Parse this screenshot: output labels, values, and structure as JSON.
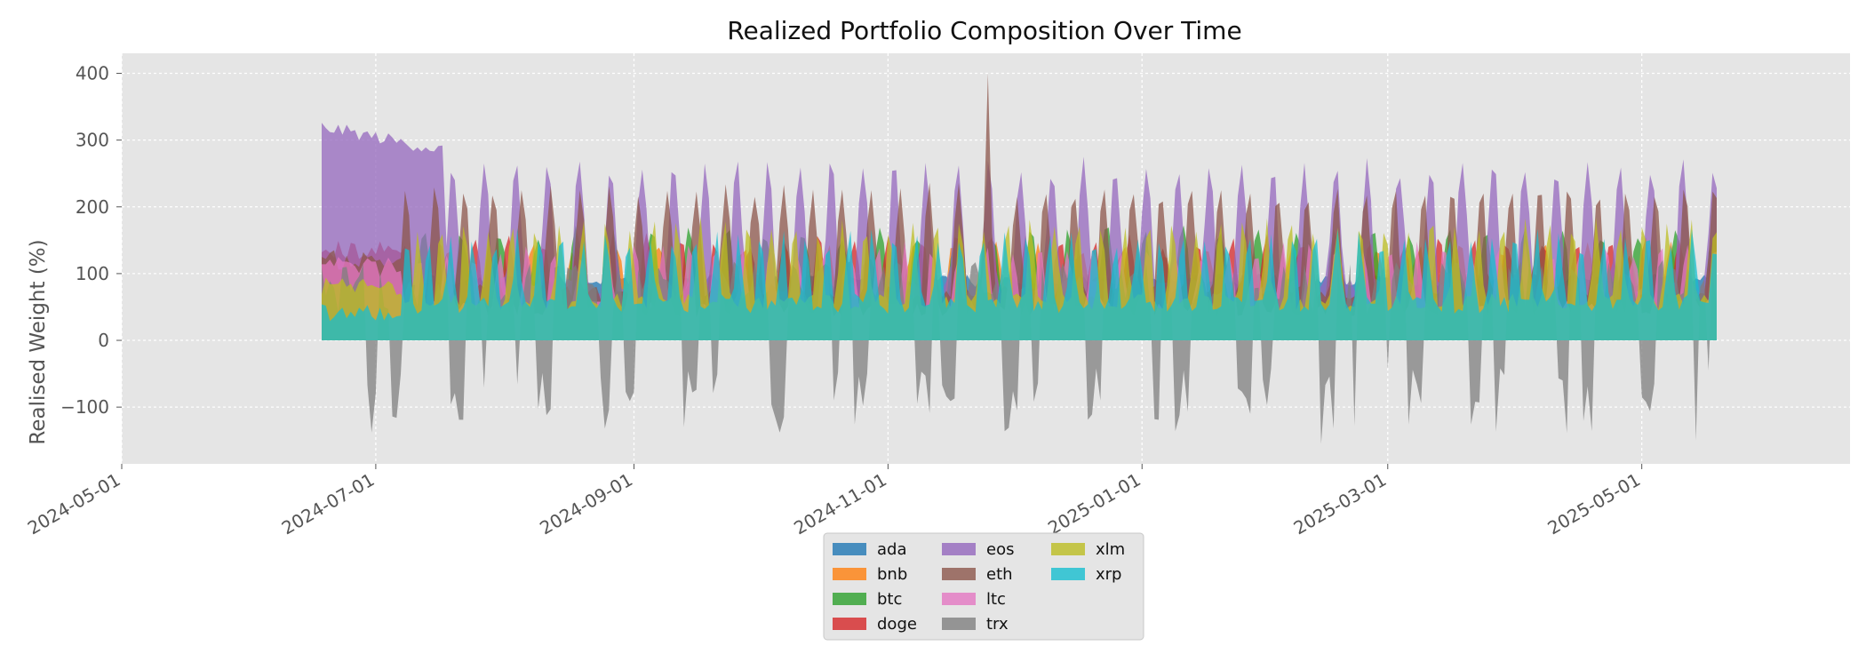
{
  "chart_data": {
    "type": "area",
    "title": "Realized Portfolio Composition Over Time",
    "xlabel": "",
    "ylabel": "Realised Weight (%)",
    "x_range": [
      "2024-05-01",
      "2025-06-20"
    ],
    "ylim": [
      -185,
      430
    ],
    "x_ticks": [
      "2024-05-01",
      "2024-07-01",
      "2024-09-01",
      "2024-11-01",
      "2025-01-01",
      "2025-03-01",
      "2025-05-01"
    ],
    "y_ticks": [
      -100,
      0,
      100,
      200,
      300,
      400
    ],
    "y_tick_labels": [
      "−100",
      "0",
      "100",
      "200",
      "300",
      "400"
    ],
    "grid": true,
    "legend_position": "bottom-center",
    "legend_columns": 3,
    "background": "#e5e5e5",
    "x_start": "2024-06-18",
    "x_end": "2025-05-19",
    "series": [
      {
        "name": "ada",
        "color": "#1f77b4",
        "typical": 88,
        "start": 10
      },
      {
        "name": "bnb",
        "color": "#ff7f0e",
        "typical": 100,
        "start": 60
      },
      {
        "name": "btc",
        "color": "#2ca02c",
        "typical": 120,
        "start": 70
      },
      {
        "name": "doge",
        "color": "#d62728",
        "typical": 110,
        "start": 135
      },
      {
        "name": "eos",
        "color": "#9467bd",
        "typical": 200,
        "start": 310
      },
      {
        "name": "eth",
        "color": "#8c564b",
        "typical": 170,
        "start": 120
      },
      {
        "name": "ltc",
        "color": "#e377c2",
        "typical": 100,
        "start": 110
      },
      {
        "name": "trx",
        "color": "#7f7f7f",
        "typical": 40,
        "start": 90
      },
      {
        "name": "xlm",
        "color": "#bcbd22",
        "typical": 130,
        "start": 80
      },
      {
        "name": "xrp",
        "color": "#17becf",
        "typical": 115,
        "start": 40
      }
    ],
    "extremes": {
      "max": 400,
      "min": -155
    }
  }
}
